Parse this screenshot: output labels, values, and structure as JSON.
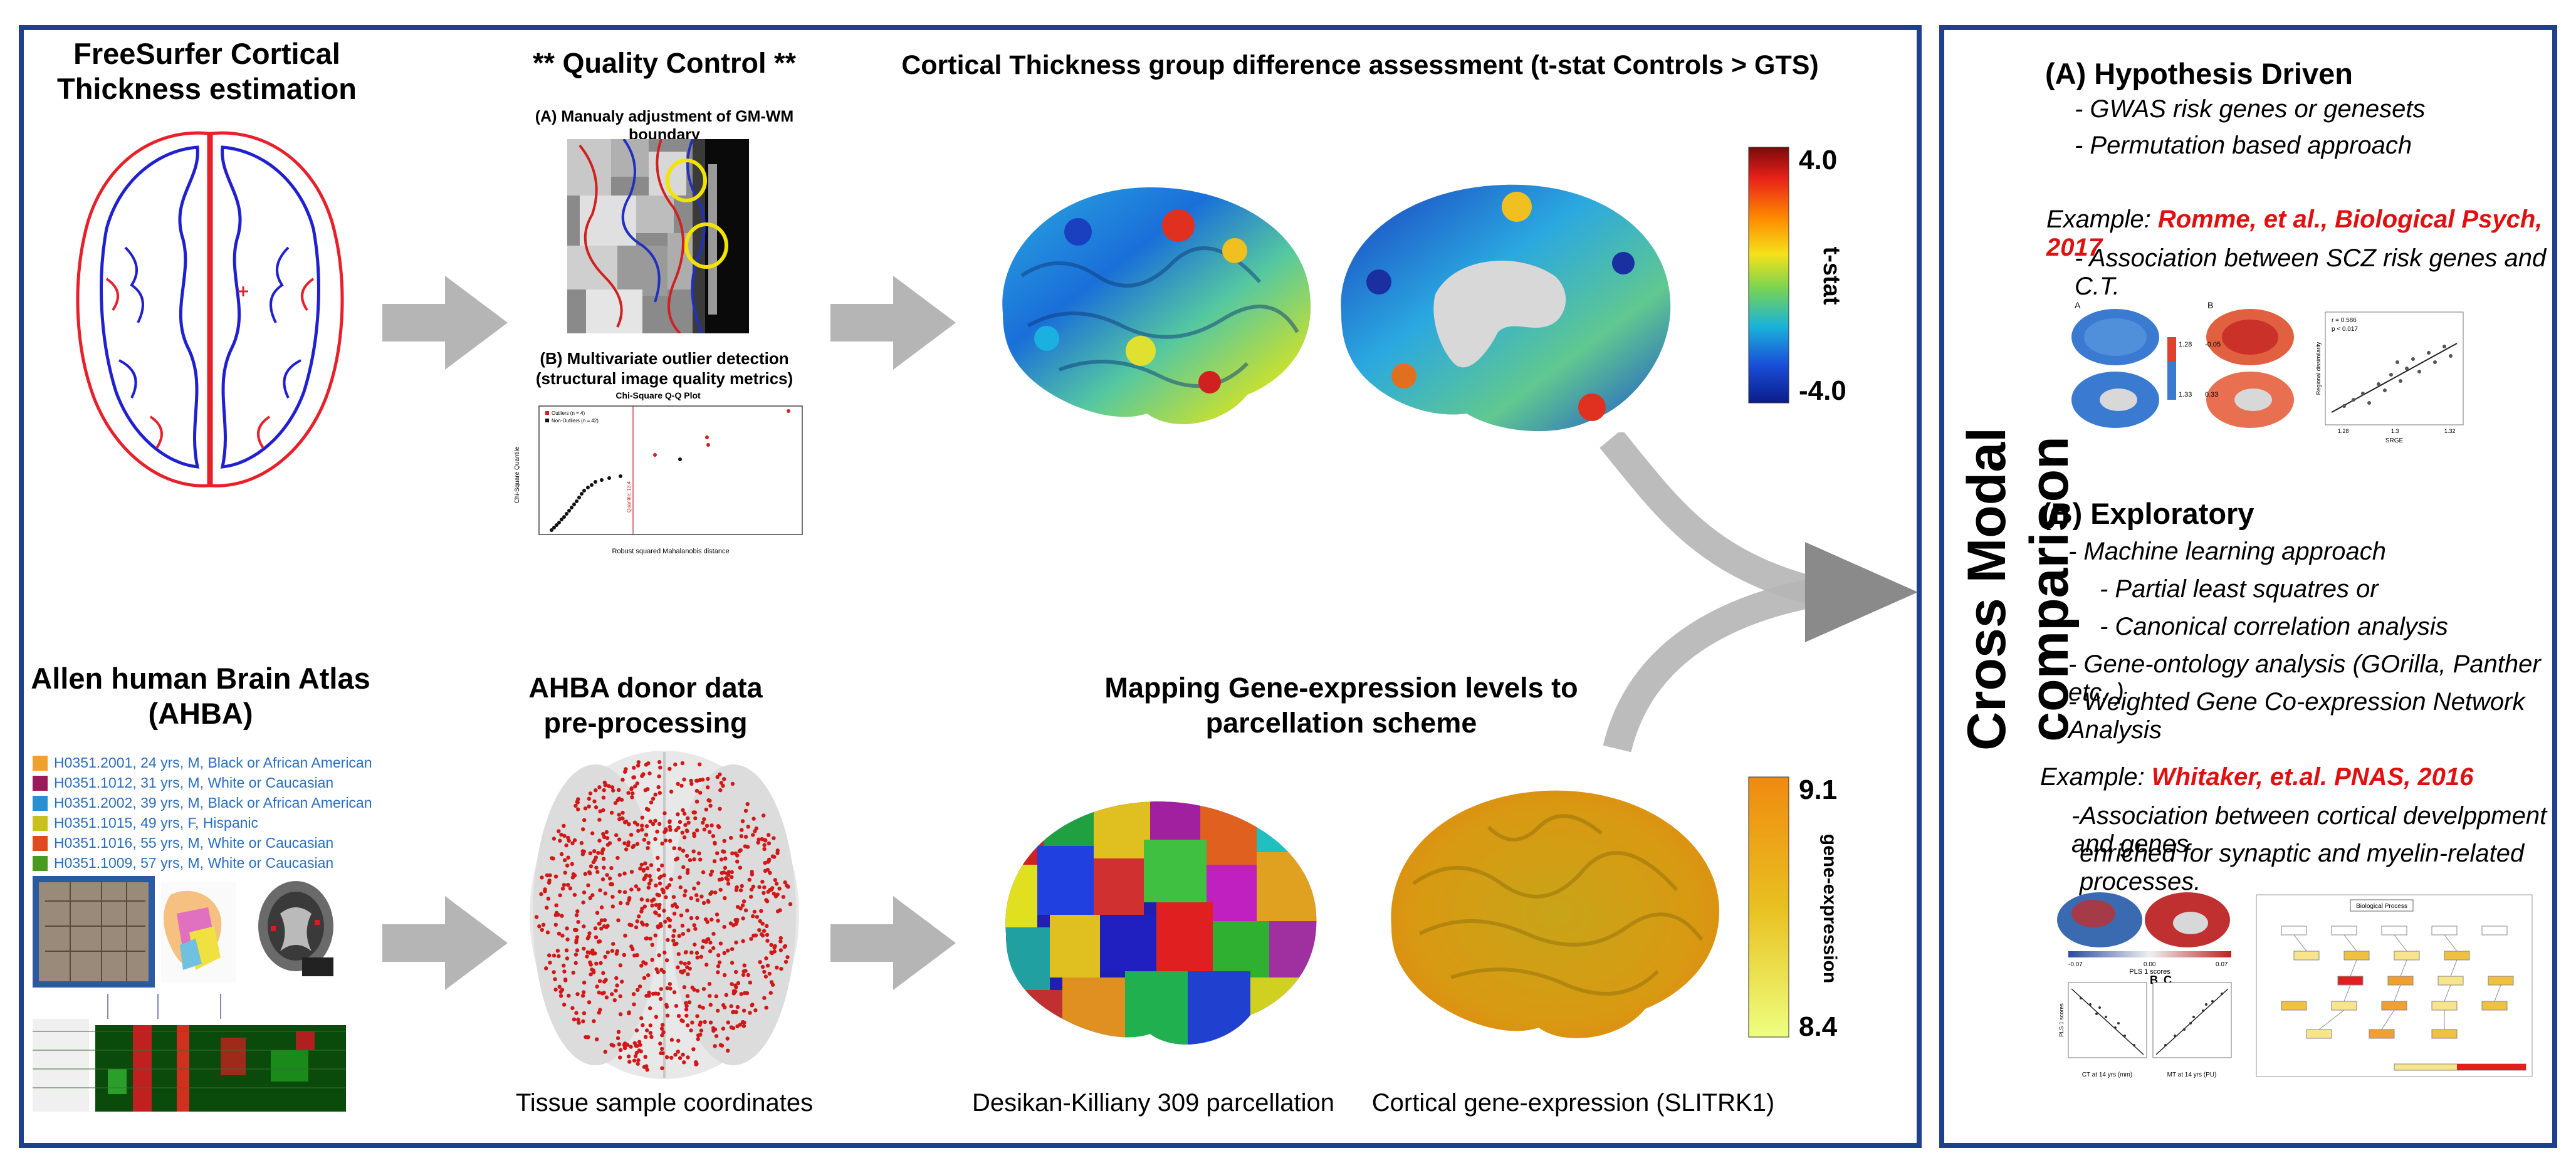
{
  "left_panel": {
    "freesurfer": {
      "title_line1": "FreeSurfer Cortical",
      "title_line2": "Thickness estimation"
    },
    "qc": {
      "title": "** Quality Control **",
      "a_label": "(A) Manualy adjustment of GM-WM boundary",
      "b_label_line1": "(B) Multivariate outlier detection",
      "b_label_line2": "(structural image quality metrics)",
      "plot_title": "Chi-Square Q-Q Plot",
      "plot_xlabel": "Robust squared Mahalanobis distance",
      "plot_ylabel": "Chi-Square Quantile",
      "legend_1": "Outliers (n = 4)",
      "legend_2": "Non-Outliers (n = 42)",
      "quantile_label": "Quantile: 13.4"
    },
    "ct_group": {
      "title": "Cortical Thickness group difference assessment (t-stat Controls > GTS)",
      "colorbar_max": "4.0",
      "colorbar_min": "-4.0",
      "colorbar_label": "t-stat",
      "colors": [
        "#7a0a0a",
        "#e8201a",
        "#ff8c00",
        "#f4e21a",
        "#7ad451",
        "#1ab3d9",
        "#1a4fd9",
        "#0b1c8a"
      ]
    },
    "ahba": {
      "title_line1": "Allen human Brain Atlas",
      "title_line2": "(AHBA)",
      "donors": [
        {
          "label": "H0351.2001, 24 yrs, M, Black or African American",
          "color": "#f0a030"
        },
        {
          "label": "H0351.1012, 31 yrs, M, White or Caucasian",
          "color": "#9a1a5a"
        },
        {
          "label": "H0351.2002, 39 yrs, M, Black or African American",
          "color": "#2a8fd0"
        },
        {
          "label": "H0351.1015, 49 yrs, F, Hispanic",
          "color": "#c8c020"
        },
        {
          "label": "H0351.1016, 55 yrs, M, White or Caucasian",
          "color": "#e04a20"
        },
        {
          "label": "H0351.1009, 57 yrs, M, White or Caucasian",
          "color": "#4a9a20"
        }
      ]
    },
    "preprocessing": {
      "title_line1": "AHBA donor data",
      "title_line2": "pre-processing",
      "caption": "Tissue sample coordinates"
    },
    "mapping": {
      "title_line1": "Mapping Gene-expression levels to",
      "title_line2": "parcellation scheme",
      "caption_parcellation": "Desikan-Killiany 309 parcellation",
      "caption_expression": "Cortical gene-expression (SLITRK1)",
      "colorbar_max": "9.1",
      "colorbar_min": "8.4",
      "colorbar_label": "gene-expression"
    }
  },
  "right_panel": {
    "vertical_title": "Cross Modal comparison",
    "hypothesis": {
      "heading": "(A) Hypothesis Driven",
      "bullet_1": "- GWAS risk genes or genesets",
      "bullet_2": "- Permutation based approach",
      "example_prefix": "Example: ",
      "example_ref": "Romme, et al., Biological Psych, 2017",
      "example_desc": "- Association between SCZ risk genes and C.T.",
      "fig_label_a": "A",
      "fig_label_b": "B",
      "fig_scale_1": "1.28",
      "fig_scale_2": "1.33",
      "fig_scale_3": "-0.05",
      "fig_scale_4": "0.33",
      "fig_stats": "r = 0.586",
      "fig_stats_2": "p < 0.017",
      "fig_xlabel": "SRGE",
      "fig_ylabel": "Regional dissimilarity",
      "fig_x1": "1.28",
      "fig_x2": "1.3",
      "fig_x3": "1.32"
    },
    "exploratory": {
      "heading": "(B) Exploratory",
      "bullet_1": "- Machine learning approach",
      "bullet_2": "- Partial least squatres or",
      "bullet_3": "- Canonical correlation analysis",
      "bullet_4": "- Gene-ontology analysis (GOrilla, Panther etc..)",
      "bullet_5": "- Weighted Gene Co-expression Network Analysis",
      "example_prefix": "Example: ",
      "example_ref": "Whitaker, et.al. PNAS, 2016",
      "example_desc_1": "-Association between cortical develppment and genes",
      "example_desc_2": "enriched for synaptic and myelin-related processes.",
      "fig_pls_label": "PLS 1 scores",
      "fig_b": "B",
      "fig_c": "C",
      "fig_xlabel_1": "CT at 14 yrs (mm)",
      "fig_xlabel_2": "MT at 14 yrs (PU)",
      "fig_ylabel": "PLS 1 scores",
      "fig_scale_min": "-0.07",
      "fig_scale_mid": "0.00",
      "fig_scale_max": "0.07",
      "fig_bp_title": "Biological Process"
    }
  }
}
